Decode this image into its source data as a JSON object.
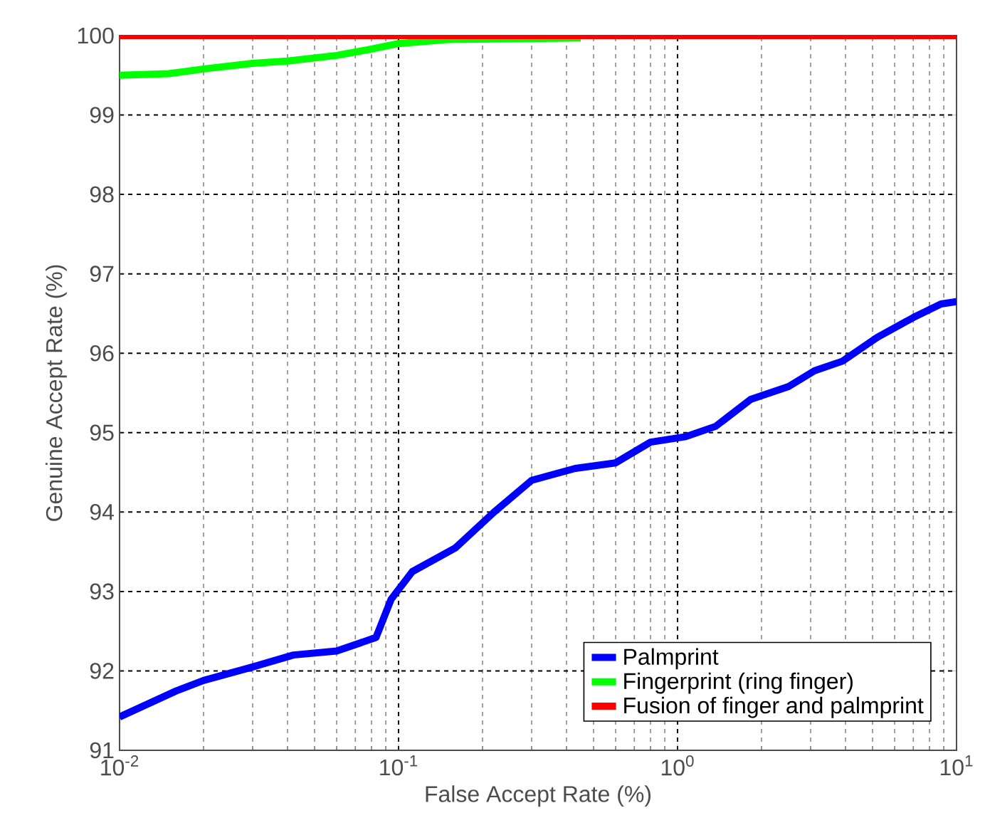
{
  "chart_data": {
    "type": "line",
    "xlabel": "False Accept Rate (%)",
    "ylabel": "Genuine Accept Rate (%)",
    "log": "x",
    "grid": true,
    "legend": "bottom right",
    "xlim": [
      0.01,
      10
    ],
    "ylim": [
      91,
      100
    ],
    "xticks": [
      {
        "value": 0.01,
        "label": "10$^{-2}$"
      },
      {
        "value": 0.1,
        "label": "10$^{-1}$"
      },
      {
        "value": 1,
        "label": "10$^{0}$"
      },
      {
        "value": 10,
        "label": "10$^{1}$"
      }
    ],
    "yticks": [
      91,
      92,
      93,
      94,
      95,
      96,
      97,
      98,
      99,
      100
    ],
    "series": [
      {
        "name": "Palmprint",
        "color": "#0000ff",
        "x": [
          0.01,
          0.016,
          0.02,
          0.03,
          0.042,
          0.06,
          0.083,
          0.094,
          0.112,
          0.16,
          0.22,
          0.3,
          0.43,
          0.6,
          0.8,
          1.07,
          1.37,
          1.83,
          2.5,
          3.1,
          3.9,
          5.2,
          7.0,
          8.8,
          10
        ],
        "values": [
          91.42,
          91.75,
          91.88,
          92.05,
          92.2,
          92.25,
          92.42,
          92.9,
          93.25,
          93.55,
          94.0,
          94.4,
          94.55,
          94.62,
          94.88,
          94.95,
          95.08,
          95.42,
          95.58,
          95.78,
          95.9,
          96.2,
          96.45,
          96.62,
          96.65
        ]
      },
      {
        "name": "Fingerprint (ring finger)",
        "color": "#00ff00",
        "x": [
          0.01,
          0.015,
          0.02,
          0.03,
          0.04,
          0.06,
          0.08,
          0.1,
          0.15,
          0.45
        ],
        "values": [
          99.5,
          99.52,
          99.58,
          99.65,
          99.68,
          99.75,
          99.83,
          99.9,
          99.95,
          99.97
        ]
      },
      {
        "name": "Fusion of finger and palmprint",
        "color": "#ff0000",
        "x": [
          0.01,
          10
        ],
        "values": [
          100,
          100
        ]
      }
    ]
  }
}
